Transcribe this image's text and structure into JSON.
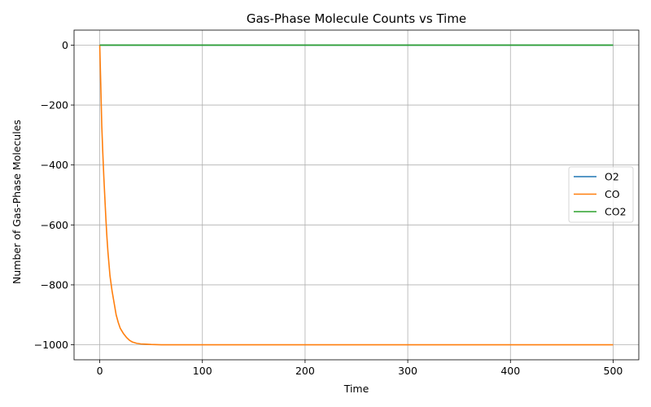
{
  "chart_data": {
    "type": "line",
    "title": "Gas-Phase Molecule Counts vs Time",
    "xlabel": "Time",
    "ylabel": "Number of Gas-Phase Molecules",
    "xlim": [
      -25,
      525
    ],
    "ylim": [
      -1050,
      50
    ],
    "xticks": [
      0,
      100,
      200,
      300,
      400,
      500
    ],
    "xtick_labels": [
      "0",
      "100",
      "200",
      "300",
      "400",
      "500"
    ],
    "yticks": [
      0,
      -200,
      -400,
      -600,
      -800,
      -1000
    ],
    "ytick_labels": [
      "0",
      "−200",
      "−400",
      "−600",
      "−800",
      "−1000"
    ],
    "grid": true,
    "legend_position": "center-right",
    "series": [
      {
        "name": "O2",
        "color": "#1f77b4",
        "x": [
          0,
          500
        ],
        "y": [
          0,
          0
        ]
      },
      {
        "name": "CO",
        "color": "#ff7f0e",
        "x": [
          0,
          1,
          2,
          3,
          4,
          5,
          6,
          7,
          8,
          9,
          10,
          12,
          14,
          16,
          18,
          20,
          23,
          26,
          29,
          32,
          36,
          40,
          45,
          50,
          60,
          70,
          80,
          100,
          150,
          200,
          250,
          300,
          350,
          400,
          450,
          500
        ],
        "y": [
          0,
          -130,
          -270,
          -360,
          -440,
          -510,
          -580,
          -640,
          -690,
          -730,
          -770,
          -820,
          -860,
          -900,
          -925,
          -945,
          -962,
          -975,
          -985,
          -991,
          -995,
          -997,
          -998,
          -999,
          -1000,
          -1000,
          -1000,
          -1000,
          -1000,
          -1000,
          -1000,
          -1000,
          -1000,
          -1000,
          -1000,
          -1000
        ]
      },
      {
        "name": "CO2",
        "color": "#2ca02c",
        "x": [
          0,
          500
        ],
        "y": [
          0,
          0
        ]
      }
    ]
  }
}
